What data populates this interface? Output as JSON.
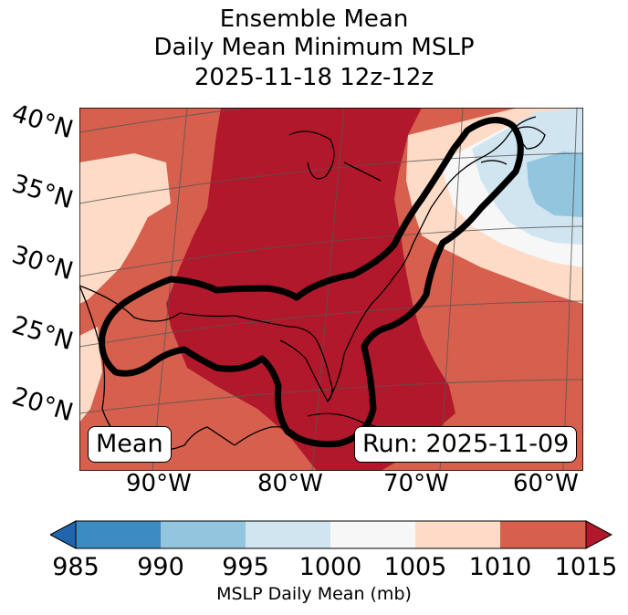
{
  "title": {
    "line1": "Ensemble Mean",
    "line2": "Daily Mean Minimum MSLP",
    "line3": "2025-11-18 12z-12z"
  },
  "map": {
    "lat_labels": [
      "40°N",
      "35°N",
      "30°N",
      "25°N",
      "20°N"
    ],
    "lon_labels": [
      "90°W",
      "80°W",
      "70°W",
      "60°W"
    ],
    "mean_label": "Mean",
    "run_label": "Run: 2025-11-09"
  },
  "colorbar": {
    "ticks": [
      "985",
      "990",
      "995",
      "1000",
      "1005",
      "1010",
      "1015"
    ],
    "label": "MSLP Daily Mean (mb)",
    "colors": [
      "#3c8bc3",
      "#92c5de",
      "#d1e5f0",
      "#f7f7f7",
      "#fddbc7",
      "#d6604d",
      "#b2182b"
    ]
  },
  "colors": {
    "c1015": "#b2182b",
    "c1010": "#d6604d",
    "c1005": "#fddbc7",
    "c1000": "#f7f7f7",
    "c995": "#d1e5f0",
    "c990": "#92c5de"
  }
}
